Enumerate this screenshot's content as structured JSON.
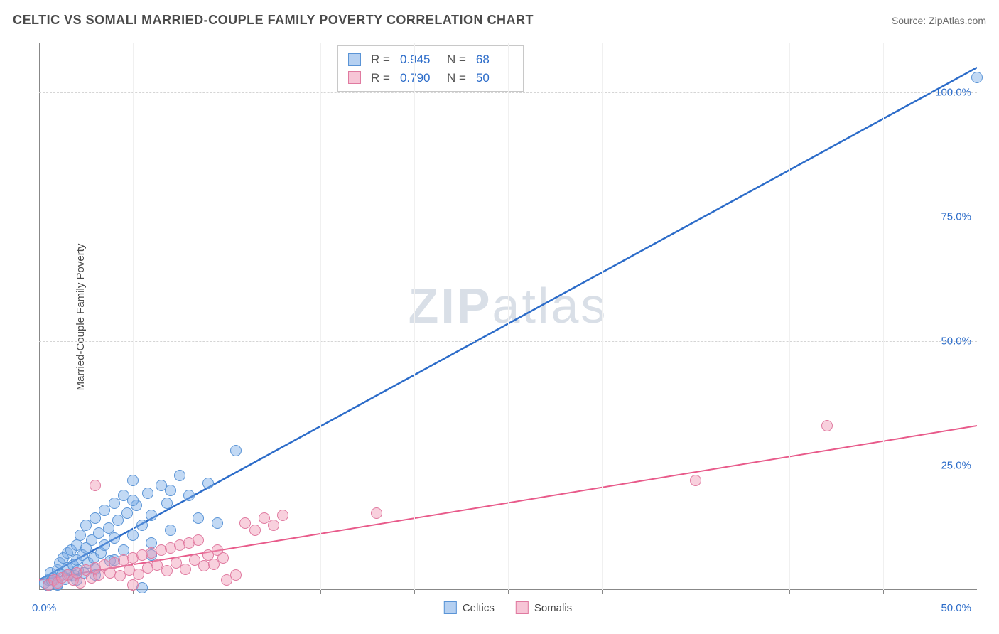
{
  "title": "CELTIC VS SOMALI MARRIED-COUPLE FAMILY POVERTY CORRELATION CHART",
  "source": "Source: ZipAtlas.com",
  "ylabel": "Married-Couple Family Poverty",
  "watermark": {
    "bold": "ZIP",
    "rest": "atlas"
  },
  "chart": {
    "type": "scatter",
    "background_color": "#ffffff",
    "grid_color": "#d5d5d5",
    "axis_color": "#888888",
    "tick_label_color": "#2c6cc9",
    "label_fontsize": 15,
    "title_fontsize": 18,
    "xlim": [
      0,
      50
    ],
    "ylim": [
      0,
      110
    ],
    "ytick_step": 25,
    "yticks": [
      25,
      50,
      75,
      100
    ],
    "ytick_labels": [
      "25.0%",
      "50.0%",
      "75.0%",
      "100.0%"
    ],
    "xtick_minor_step": 5,
    "x_left_label": "0.0%",
    "x_right_label": "50.0%",
    "series": [
      {
        "name": "Celtics",
        "color_fill": "rgba(120,170,230,0.45)",
        "color_stroke": "#5a94d6",
        "line_color": "#2c6cc9",
        "line_width": 2.5,
        "marker_radius": 8,
        "R": "0.945",
        "N": "68",
        "trend": {
          "x1": 0,
          "y1": 2,
          "x2": 50,
          "y2": 105
        },
        "points": [
          [
            0.3,
            1.5
          ],
          [
            0.5,
            2.0
          ],
          [
            0.6,
            3.5
          ],
          [
            0.8,
            2.5
          ],
          [
            1.0,
            4.0
          ],
          [
            1.0,
            1.2
          ],
          [
            1.1,
            5.5
          ],
          [
            1.2,
            3.0
          ],
          [
            1.3,
            6.5
          ],
          [
            1.4,
            2.2
          ],
          [
            1.5,
            7.5
          ],
          [
            1.5,
            4.5
          ],
          [
            1.6,
            3.2
          ],
          [
            1.7,
            8.0
          ],
          [
            1.8,
            5.0
          ],
          [
            1.9,
            2.8
          ],
          [
            2.0,
            9.0
          ],
          [
            2.0,
            6.0
          ],
          [
            2.1,
            4.0
          ],
          [
            2.2,
            11.0
          ],
          [
            2.3,
            7.0
          ],
          [
            2.4,
            3.5
          ],
          [
            2.5,
            13.0
          ],
          [
            2.5,
            8.5
          ],
          [
            2.6,
            5.5
          ],
          [
            2.8,
            10.0
          ],
          [
            2.9,
            6.5
          ],
          [
            3.0,
            14.5
          ],
          [
            3.0,
            4.2
          ],
          [
            3.2,
            11.5
          ],
          [
            3.3,
            7.5
          ],
          [
            3.5,
            16.0
          ],
          [
            3.5,
            9.0
          ],
          [
            3.7,
            12.5
          ],
          [
            3.8,
            5.8
          ],
          [
            4.0,
            17.5
          ],
          [
            4.0,
            10.5
          ],
          [
            4.2,
            14.0
          ],
          [
            4.5,
            19.0
          ],
          [
            4.5,
            8.0
          ],
          [
            4.7,
            15.5
          ],
          [
            5.0,
            11.0
          ],
          [
            5.0,
            22.0
          ],
          [
            5.2,
            17.0
          ],
          [
            5.5,
            13.0
          ],
          [
            5.5,
            0.5
          ],
          [
            5.8,
            19.5
          ],
          [
            6.0,
            15.0
          ],
          [
            6.0,
            9.5
          ],
          [
            6.5,
            21.0
          ],
          [
            6.8,
            17.5
          ],
          [
            7.0,
            12.0
          ],
          [
            7.5,
            23.0
          ],
          [
            8.0,
            19.0
          ],
          [
            8.5,
            14.5
          ],
          [
            9.0,
            21.5
          ],
          [
            9.5,
            13.5
          ],
          [
            10.5,
            28.0
          ],
          [
            5.0,
            18.0
          ],
          [
            3.0,
            3.0
          ],
          [
            2.0,
            2.0
          ],
          [
            1.0,
            1.0
          ],
          [
            0.5,
            0.8
          ],
          [
            0.7,
            1.8
          ],
          [
            4.0,
            6.0
          ],
          [
            6.0,
            7.0
          ],
          [
            7.0,
            20.0
          ],
          [
            50.0,
            103.0
          ]
        ]
      },
      {
        "name": "Somalis",
        "color_fill": "rgba(240,150,180,0.45)",
        "color_stroke": "#e07aa0",
        "line_color": "#e85a8a",
        "line_width": 2,
        "marker_radius": 8,
        "R": "0.790",
        "N": "50",
        "trend": {
          "x1": 0,
          "y1": 2,
          "x2": 50,
          "y2": 33
        },
        "points": [
          [
            0.5,
            1.0
          ],
          [
            0.8,
            2.0
          ],
          [
            1.0,
            1.5
          ],
          [
            1.2,
            2.5
          ],
          [
            1.5,
            3.0
          ],
          [
            1.8,
            2.0
          ],
          [
            2.0,
            3.5
          ],
          [
            2.2,
            1.5
          ],
          [
            2.5,
            4.0
          ],
          [
            2.8,
            2.5
          ],
          [
            3.0,
            4.5
          ],
          [
            3.2,
            3.0
          ],
          [
            3.5,
            5.0
          ],
          [
            3.8,
            3.5
          ],
          [
            4.0,
            5.5
          ],
          [
            4.3,
            2.8
          ],
          [
            4.5,
            6.0
          ],
          [
            4.8,
            4.0
          ],
          [
            5.0,
            6.5
          ],
          [
            5.3,
            3.2
          ],
          [
            5.5,
            7.0
          ],
          [
            5.8,
            4.5
          ],
          [
            6.0,
            7.5
          ],
          [
            6.3,
            5.0
          ],
          [
            6.5,
            8.0
          ],
          [
            6.8,
            3.8
          ],
          [
            7.0,
            8.5
          ],
          [
            7.3,
            5.5
          ],
          [
            7.5,
            9.0
          ],
          [
            7.8,
            4.2
          ],
          [
            8.0,
            9.5
          ],
          [
            8.3,
            6.0
          ],
          [
            8.5,
            10.0
          ],
          [
            8.8,
            4.8
          ],
          [
            9.0,
            7.0
          ],
          [
            9.3,
            5.2
          ],
          [
            9.5,
            8.0
          ],
          [
            9.8,
            6.5
          ],
          [
            10.0,
            2.0
          ],
          [
            10.5,
            3.0
          ],
          [
            11.0,
            13.5
          ],
          [
            11.5,
            12.0
          ],
          [
            12.0,
            14.5
          ],
          [
            12.5,
            13.0
          ],
          [
            13.0,
            15.0
          ],
          [
            18.0,
            15.5
          ],
          [
            35.0,
            22.0
          ],
          [
            42.0,
            33.0
          ],
          [
            3.0,
            21.0
          ],
          [
            5.0,
            1.0
          ]
        ]
      }
    ]
  },
  "stats_legend": {
    "rows": [
      {
        "swatch_fill": "rgba(120,170,230,0.55)",
        "swatch_stroke": "#5a94d6",
        "R_label": "R =",
        "R": "0.945",
        "N_label": "N =",
        "N": "68"
      },
      {
        "swatch_fill": "rgba(240,150,180,0.55)",
        "swatch_stroke": "#e07aa0",
        "R_label": "R =",
        "R": "0.790",
        "N_label": "N =",
        "N": "50"
      }
    ]
  },
  "bottom_legend": {
    "items": [
      {
        "swatch_fill": "rgba(120,170,230,0.55)",
        "swatch_stroke": "#5a94d6",
        "label": "Celtics"
      },
      {
        "swatch_fill": "rgba(240,150,180,0.55)",
        "swatch_stroke": "#e07aa0",
        "label": "Somalis"
      }
    ]
  }
}
